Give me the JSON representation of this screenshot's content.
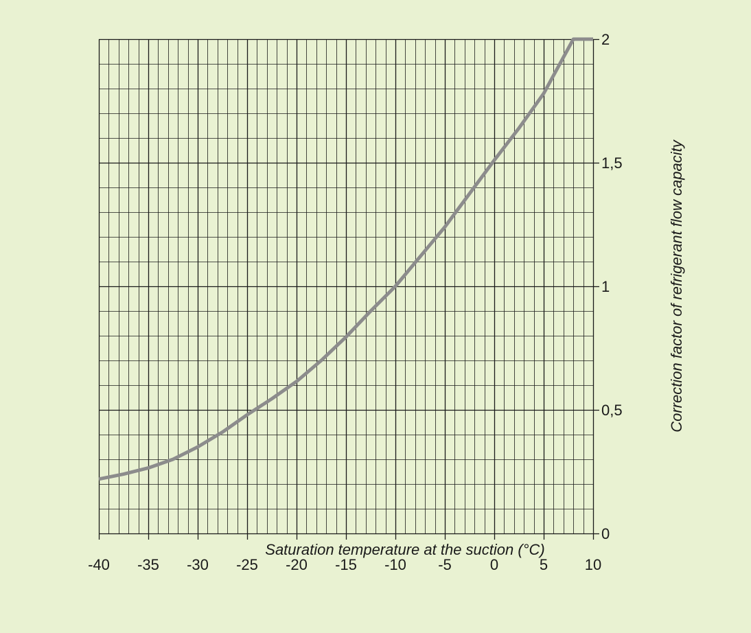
{
  "colors": {
    "background": "#e9f2d2",
    "grid_line": "#1a1a1a",
    "curve": "#8c8c8c",
    "text": "#1a1a1a"
  },
  "chart_data": {
    "type": "line",
    "xlabel": "Saturation temperature at the suction (°C)",
    "ylabel": "Correction factor of refrigerant flow capacity",
    "xlim": [
      -40,
      10
    ],
    "ylim": [
      0,
      2
    ],
    "grid": true,
    "y_axis_position": "right",
    "x_ticks": [
      -40,
      -35,
      -30,
      -25,
      -20,
      -15,
      -10,
      -5,
      0,
      5,
      10
    ],
    "x_tick_labels": [
      "-40",
      "-35",
      "-30",
      "-25",
      "-20",
      "-15",
      "-10",
      "-5",
      "0",
      "5",
      "10"
    ],
    "y_ticks": [
      0,
      0.5,
      1,
      1.5,
      2
    ],
    "y_tick_labels": [
      "0",
      "0,5",
      "1",
      "1,5",
      "2"
    ],
    "x_minor_step": 1,
    "y_minor_step": 0.1,
    "series": [
      {
        "x": [
          -40,
          -37.5,
          -35,
          -32.5,
          -30,
          -27.5,
          -25,
          -22.5,
          -20,
          -17.5,
          -15,
          -12.5,
          -10,
          -7.5,
          -5,
          -2.5,
          0,
          2.5,
          5,
          8,
          10
        ],
        "y": [
          0.22,
          0.24,
          0.265,
          0.3,
          0.35,
          0.41,
          0.48,
          0.545,
          0.615,
          0.7,
          0.795,
          0.9,
          1.0,
          1.12,
          1.24,
          1.375,
          1.51,
          1.64,
          1.78,
          2.0,
          2.0
        ]
      }
    ]
  }
}
